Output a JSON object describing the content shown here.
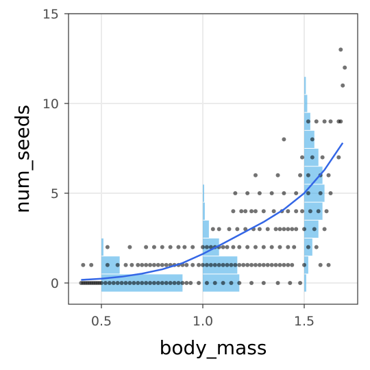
{
  "chart_data": {
    "type": "scatter",
    "xlabel": "body_mass",
    "ylabel": "num_seeds",
    "xlim": [
      0.33,
      1.75
    ],
    "ylim": [
      -1,
      15
    ],
    "x_ticks": [
      {
        "value": 0.5,
        "label": "0.5"
      },
      {
        "value": 1.0,
        "label": "1.0"
      },
      {
        "value": 1.5,
        "label": "1.5"
      }
    ],
    "y_ticks": [
      {
        "value": 0,
        "label": "0"
      },
      {
        "value": 5,
        "label": "5"
      },
      {
        "value": 10,
        "label": "10"
      },
      {
        "value": 15,
        "label": "15"
      }
    ],
    "grid": true,
    "legend": "none",
    "colors": {
      "points": "#000000",
      "histogram": "#56B4E9",
      "curve": "#3366E6",
      "grid": "#EBEBEB",
      "panel_border": "#333333"
    },
    "points": [
      {
        "x": 0.4,
        "y": 0
      },
      {
        "x": 0.41,
        "y": 0
      },
      {
        "x": 0.42,
        "y": 0
      },
      {
        "x": 0.43,
        "y": 0
      },
      {
        "x": 0.44,
        "y": 0
      },
      {
        "x": 0.45,
        "y": 0
      },
      {
        "x": 0.46,
        "y": 0
      },
      {
        "x": 0.47,
        "y": 0
      },
      {
        "x": 0.48,
        "y": 0
      },
      {
        "x": 0.49,
        "y": 0
      },
      {
        "x": 0.5,
        "y": 0
      },
      {
        "x": 0.52,
        "y": 0
      },
      {
        "x": 0.54,
        "y": 0
      },
      {
        "x": 0.56,
        "y": 0
      },
      {
        "x": 0.58,
        "y": 0
      },
      {
        "x": 0.6,
        "y": 0
      },
      {
        "x": 0.62,
        "y": 0
      },
      {
        "x": 0.64,
        "y": 0
      },
      {
        "x": 0.66,
        "y": 0
      },
      {
        "x": 0.68,
        "y": 0
      },
      {
        "x": 0.7,
        "y": 0
      },
      {
        "x": 0.72,
        "y": 0
      },
      {
        "x": 0.74,
        "y": 0
      },
      {
        "x": 0.76,
        "y": 0
      },
      {
        "x": 0.78,
        "y": 0
      },
      {
        "x": 0.8,
        "y": 0
      },
      {
        "x": 0.82,
        "y": 0
      },
      {
        "x": 0.84,
        "y": 0
      },
      {
        "x": 0.86,
        "y": 0
      },
      {
        "x": 0.88,
        "y": 0
      },
      {
        "x": 0.9,
        "y": 0
      },
      {
        "x": 0.92,
        "y": 0
      },
      {
        "x": 0.94,
        "y": 0
      },
      {
        "x": 0.98,
        "y": 0
      },
      {
        "x": 1.02,
        "y": 0
      },
      {
        "x": 1.06,
        "y": 0
      },
      {
        "x": 1.1,
        "y": 0
      },
      {
        "x": 1.14,
        "y": 0
      },
      {
        "x": 1.18,
        "y": 0
      },
      {
        "x": 1.24,
        "y": 0
      },
      {
        "x": 1.3,
        "y": 0
      },
      {
        "x": 1.37,
        "y": 0
      },
      {
        "x": 1.43,
        "y": 0
      },
      {
        "x": 1.48,
        "y": 0
      },
      {
        "x": 0.41,
        "y": 1
      },
      {
        "x": 0.45,
        "y": 1
      },
      {
        "x": 0.53,
        "y": 1
      },
      {
        "x": 0.58,
        "y": 1
      },
      {
        "x": 0.62,
        "y": 1
      },
      {
        "x": 0.65,
        "y": 1
      },
      {
        "x": 0.68,
        "y": 1
      },
      {
        "x": 0.7,
        "y": 1
      },
      {
        "x": 0.72,
        "y": 1
      },
      {
        "x": 0.74,
        "y": 1
      },
      {
        "x": 0.76,
        "y": 1
      },
      {
        "x": 0.78,
        "y": 1
      },
      {
        "x": 0.8,
        "y": 1
      },
      {
        "x": 0.82,
        "y": 1
      },
      {
        "x": 0.84,
        "y": 1
      },
      {
        "x": 0.86,
        "y": 1
      },
      {
        "x": 0.88,
        "y": 1
      },
      {
        "x": 0.9,
        "y": 1
      },
      {
        "x": 0.92,
        "y": 1
      },
      {
        "x": 0.95,
        "y": 1
      },
      {
        "x": 0.98,
        "y": 1
      },
      {
        "x": 1.0,
        "y": 1
      },
      {
        "x": 1.02,
        "y": 1
      },
      {
        "x": 1.04,
        "y": 1
      },
      {
        "x": 1.06,
        "y": 1
      },
      {
        "x": 1.08,
        "y": 1
      },
      {
        "x": 1.1,
        "y": 1
      },
      {
        "x": 1.12,
        "y": 1
      },
      {
        "x": 1.14,
        "y": 1
      },
      {
        "x": 1.16,
        "y": 1
      },
      {
        "x": 1.18,
        "y": 1
      },
      {
        "x": 1.2,
        "y": 1
      },
      {
        "x": 1.22,
        "y": 1
      },
      {
        "x": 1.24,
        "y": 1
      },
      {
        "x": 1.26,
        "y": 1
      },
      {
        "x": 1.28,
        "y": 1
      },
      {
        "x": 1.3,
        "y": 1
      },
      {
        "x": 1.32,
        "y": 1
      },
      {
        "x": 1.34,
        "y": 1
      },
      {
        "x": 1.36,
        "y": 1
      },
      {
        "x": 1.38,
        "y": 1
      },
      {
        "x": 1.4,
        "y": 1
      },
      {
        "x": 1.42,
        "y": 1
      },
      {
        "x": 1.44,
        "y": 1
      },
      {
        "x": 1.5,
        "y": 1
      },
      {
        "x": 1.58,
        "y": 1
      },
      {
        "x": 1.62,
        "y": 1
      },
      {
        "x": 0.53,
        "y": 2
      },
      {
        "x": 0.64,
        "y": 2
      },
      {
        "x": 0.72,
        "y": 2
      },
      {
        "x": 0.76,
        "y": 2
      },
      {
        "x": 0.8,
        "y": 2
      },
      {
        "x": 0.84,
        "y": 2
      },
      {
        "x": 0.88,
        "y": 2
      },
      {
        "x": 0.91,
        "y": 2
      },
      {
        "x": 0.95,
        "y": 2
      },
      {
        "x": 1.0,
        "y": 2
      },
      {
        "x": 1.02,
        "y": 2
      },
      {
        "x": 1.04,
        "y": 2
      },
      {
        "x": 1.06,
        "y": 2
      },
      {
        "x": 1.08,
        "y": 2
      },
      {
        "x": 1.1,
        "y": 2
      },
      {
        "x": 1.12,
        "y": 2
      },
      {
        "x": 1.15,
        "y": 2
      },
      {
        "x": 1.18,
        "y": 2
      },
      {
        "x": 1.22,
        "y": 2
      },
      {
        "x": 1.26,
        "y": 2
      },
      {
        "x": 1.3,
        "y": 2
      },
      {
        "x": 1.34,
        "y": 2
      },
      {
        "x": 1.38,
        "y": 2
      },
      {
        "x": 1.42,
        "y": 2
      },
      {
        "x": 1.45,
        "y": 2
      },
      {
        "x": 1.52,
        "y": 2
      },
      {
        "x": 1.56,
        "y": 2
      },
      {
        "x": 1.05,
        "y": 3
      },
      {
        "x": 1.08,
        "y": 3
      },
      {
        "x": 1.13,
        "y": 3
      },
      {
        "x": 1.17,
        "y": 3
      },
      {
        "x": 1.21,
        "y": 3
      },
      {
        "x": 1.25,
        "y": 3
      },
      {
        "x": 1.28,
        "y": 3
      },
      {
        "x": 1.32,
        "y": 3
      },
      {
        "x": 1.36,
        "y": 3
      },
      {
        "x": 1.38,
        "y": 3
      },
      {
        "x": 1.4,
        "y": 3
      },
      {
        "x": 1.42,
        "y": 3
      },
      {
        "x": 1.44,
        "y": 3
      },
      {
        "x": 1.46,
        "y": 3
      },
      {
        "x": 1.5,
        "y": 3
      },
      {
        "x": 1.55,
        "y": 3
      },
      {
        "x": 1.6,
        "y": 3
      },
      {
        "x": 1.15,
        "y": 4
      },
      {
        "x": 1.19,
        "y": 4
      },
      {
        "x": 1.21,
        "y": 4
      },
      {
        "x": 1.24,
        "y": 4
      },
      {
        "x": 1.26,
        "y": 4
      },
      {
        "x": 1.3,
        "y": 4
      },
      {
        "x": 1.35,
        "y": 4
      },
      {
        "x": 1.39,
        "y": 4
      },
      {
        "x": 1.42,
        "y": 4
      },
      {
        "x": 1.46,
        "y": 4
      },
      {
        "x": 1.49,
        "y": 4
      },
      {
        "x": 1.53,
        "y": 4
      },
      {
        "x": 1.57,
        "y": 4
      },
      {
        "x": 1.61,
        "y": 4
      },
      {
        "x": 1.16,
        "y": 5
      },
      {
        "x": 1.22,
        "y": 5
      },
      {
        "x": 1.28,
        "y": 5
      },
      {
        "x": 1.34,
        "y": 5
      },
      {
        "x": 1.4,
        "y": 5
      },
      {
        "x": 1.46,
        "y": 5
      },
      {
        "x": 1.52,
        "y": 5
      },
      {
        "x": 1.58,
        "y": 5
      },
      {
        "x": 1.63,
        "y": 5
      },
      {
        "x": 1.26,
        "y": 6
      },
      {
        "x": 1.37,
        "y": 6
      },
      {
        "x": 1.48,
        "y": 6
      },
      {
        "x": 1.52,
        "y": 6
      },
      {
        "x": 1.58,
        "y": 6
      },
      {
        "x": 1.62,
        "y": 6
      },
      {
        "x": 1.49,
        "y": 7
      },
      {
        "x": 1.54,
        "y": 7
      },
      {
        "x": 1.59,
        "y": 7
      },
      {
        "x": 1.67,
        "y": 7
      },
      {
        "x": 1.4,
        "y": 8
      },
      {
        "x": 1.54,
        "y": 8
      },
      {
        "x": 1.52,
        "y": 9
      },
      {
        "x": 1.56,
        "y": 9
      },
      {
        "x": 1.6,
        "y": 9
      },
      {
        "x": 1.63,
        "y": 9
      },
      {
        "x": 1.67,
        "y": 9
      },
      {
        "x": 1.68,
        "y": 9
      },
      {
        "x": 1.69,
        "y": 11
      },
      {
        "x": 1.7,
        "y": 12
      },
      {
        "x": 1.68,
        "y": 13
      }
    ],
    "histograms": [
      {
        "x": 0.5,
        "bins": [
          {
            "y": 0,
            "width": 0.4
          },
          {
            "y": 1,
            "width": 0.09
          },
          {
            "y": 2,
            "width": 0.01
          }
        ]
      },
      {
        "x": 1.0,
        "bins": [
          {
            "y": 0,
            "width": 0.18
          },
          {
            "y": 1,
            "width": 0.17
          },
          {
            "y": 2,
            "width": 0.08
          },
          {
            "y": 3,
            "width": 0.03
          },
          {
            "y": 4,
            "width": 0.01
          },
          {
            "y": 5,
            "width": 0.005
          }
        ]
      },
      {
        "x": 1.5,
        "bins": [
          {
            "y": 0,
            "width": 0.01
          },
          {
            "y": 1,
            "width": 0.02
          },
          {
            "y": 2,
            "width": 0.04
          },
          {
            "y": 3,
            "width": 0.07
          },
          {
            "y": 4,
            "width": 0.09
          },
          {
            "y": 5,
            "width": 0.1
          },
          {
            "y": 6,
            "width": 0.09
          },
          {
            "y": 7,
            "width": 0.07
          },
          {
            "y": 8,
            "width": 0.05
          },
          {
            "y": 9,
            "width": 0.03
          },
          {
            "y": 10,
            "width": 0.015
          },
          {
            "y": 11,
            "width": 0.008
          }
        ]
      }
    ],
    "curve": [
      {
        "x": 0.4,
        "y": 0.17
      },
      {
        "x": 0.5,
        "y": 0.24
      },
      {
        "x": 0.6,
        "y": 0.35
      },
      {
        "x": 0.7,
        "y": 0.52
      },
      {
        "x": 0.8,
        "y": 0.76
      },
      {
        "x": 0.9,
        "y": 1.11
      },
      {
        "x": 1.0,
        "y": 1.62
      },
      {
        "x": 1.1,
        "y": 2.2
      },
      {
        "x": 1.2,
        "y": 2.8
      },
      {
        "x": 1.3,
        "y": 3.4
      },
      {
        "x": 1.4,
        "y": 4.1
      },
      {
        "x": 1.5,
        "y": 5.0
      },
      {
        "x": 1.6,
        "y": 6.3
      },
      {
        "x": 1.69,
        "y": 7.8
      }
    ]
  }
}
